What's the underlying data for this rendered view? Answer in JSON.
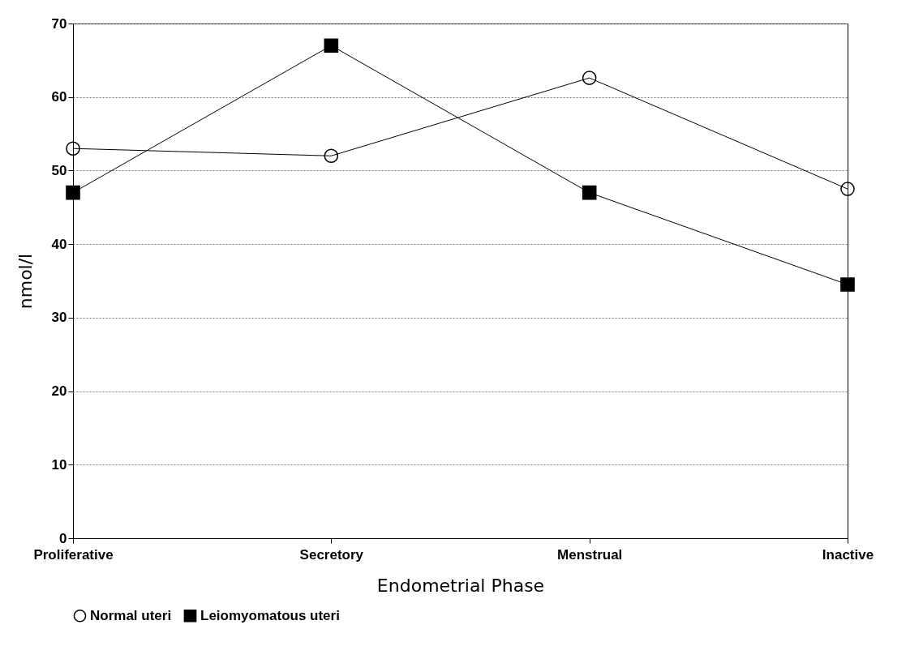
{
  "chart_data": {
    "type": "line",
    "xlabel": "Endometrial Phase",
    "ylabel": "nmol/l",
    "categories": [
      "Proliferative",
      "Secretory",
      "Menstrual",
      "Inactive"
    ],
    "series": [
      {
        "name": "Normal uteri",
        "color": "#000000",
        "marker": "circle",
        "values": [
          53,
          52,
          62.6,
          47.5
        ]
      },
      {
        "name": "Leiomyomatous uteri",
        "color": "#000000",
        "marker": "square",
        "values": [
          47,
          67,
          47,
          34.5
        ]
      }
    ],
    "ylim": [
      0,
      70
    ],
    "yticks": [
      0,
      10,
      20,
      30,
      40,
      50,
      60,
      70
    ],
    "grid": "y",
    "legend": "bottom",
    "line_style": "solid"
  }
}
